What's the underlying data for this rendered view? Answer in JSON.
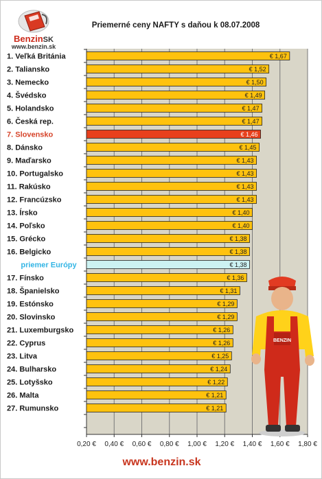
{
  "header": {
    "logo_brand": "Benzin",
    "logo_suffix": "SK",
    "logo_url": "www.benzin.sk",
    "chart_title": "Priemerné ceny NAFTY s daňou k 08.07.2008"
  },
  "footer": {
    "url": "www.benzin.sk"
  },
  "colors": {
    "bar": "#ffc20e",
    "bar_highlight": "#e8401c",
    "bar_average": "#ccf2f2",
    "plot_bg": "#d9d6c8",
    "highlight_label": "#d6442a",
    "average_label": "#33b5e5"
  },
  "chart_data": {
    "type": "bar",
    "orientation": "horizontal",
    "title": "Priemerné ceny NAFTY s daňou k 08.07.2008",
    "xlim": [
      0.2,
      1.8
    ],
    "x_ticks": [
      "0,20 €",
      "0,40 €",
      "0,60 €",
      "0,80 €",
      "1,00 €",
      "1,20 €",
      "1,40 €",
      "1,60 €",
      "1,80 €"
    ],
    "grid": "vertical",
    "highlight_category": "7. Slovensko",
    "average_category": "priemer Európy",
    "categories": [
      "1. Veľká Británia",
      "2. Taliansko",
      "3. Nemecko",
      "4. Švédsko",
      "5. Holandsko",
      "6. Česká rep.",
      "7. Slovensko",
      "8. Dánsko",
      "9. Maďarsko",
      "10. Portugalsko",
      "11. Rakúsko",
      "12. Francúzsko",
      "13. Írsko",
      "14. Poľsko",
      "15. Grécko",
      "16. Belgicko",
      "priemer Európy",
      "17. Fínsko",
      "18. Španielsko",
      "19. Estónsko",
      "20. Slovinsko",
      "21. Luxemburgsko",
      "22. Cyprus",
      "23. Litva",
      "24. Bulharsko",
      "25. Lotyšsko",
      "26. Malta",
      "27. Rumunsko"
    ],
    "values": [
      1.67,
      1.52,
      1.5,
      1.49,
      1.47,
      1.47,
      1.46,
      1.45,
      1.43,
      1.43,
      1.43,
      1.43,
      1.4,
      1.4,
      1.38,
      1.38,
      1.38,
      1.36,
      1.31,
      1.29,
      1.29,
      1.26,
      1.26,
      1.25,
      1.24,
      1.22,
      1.21,
      1.21
    ],
    "value_labels": [
      "€ 1,67",
      "€ 1,52",
      "€ 1,50",
      "€ 1,49",
      "€ 1,47",
      "€ 1,47",
      "€ 1,46",
      "€ 1,45",
      "€ 1,43",
      "€ 1,43",
      "€ 1,43",
      "€ 1,43",
      "€ 1,40",
      "€ 1,40",
      "€ 1,38",
      "€ 1,38",
      "€ 1,38",
      "€ 1,36",
      "€ 1,31",
      "€ 1,29",
      "€ 1,29",
      "€ 1,26",
      "€ 1,26",
      "€ 1,25",
      "€ 1,24",
      "€ 1,22",
      "€ 1,21",
      "€ 1,21"
    ]
  }
}
